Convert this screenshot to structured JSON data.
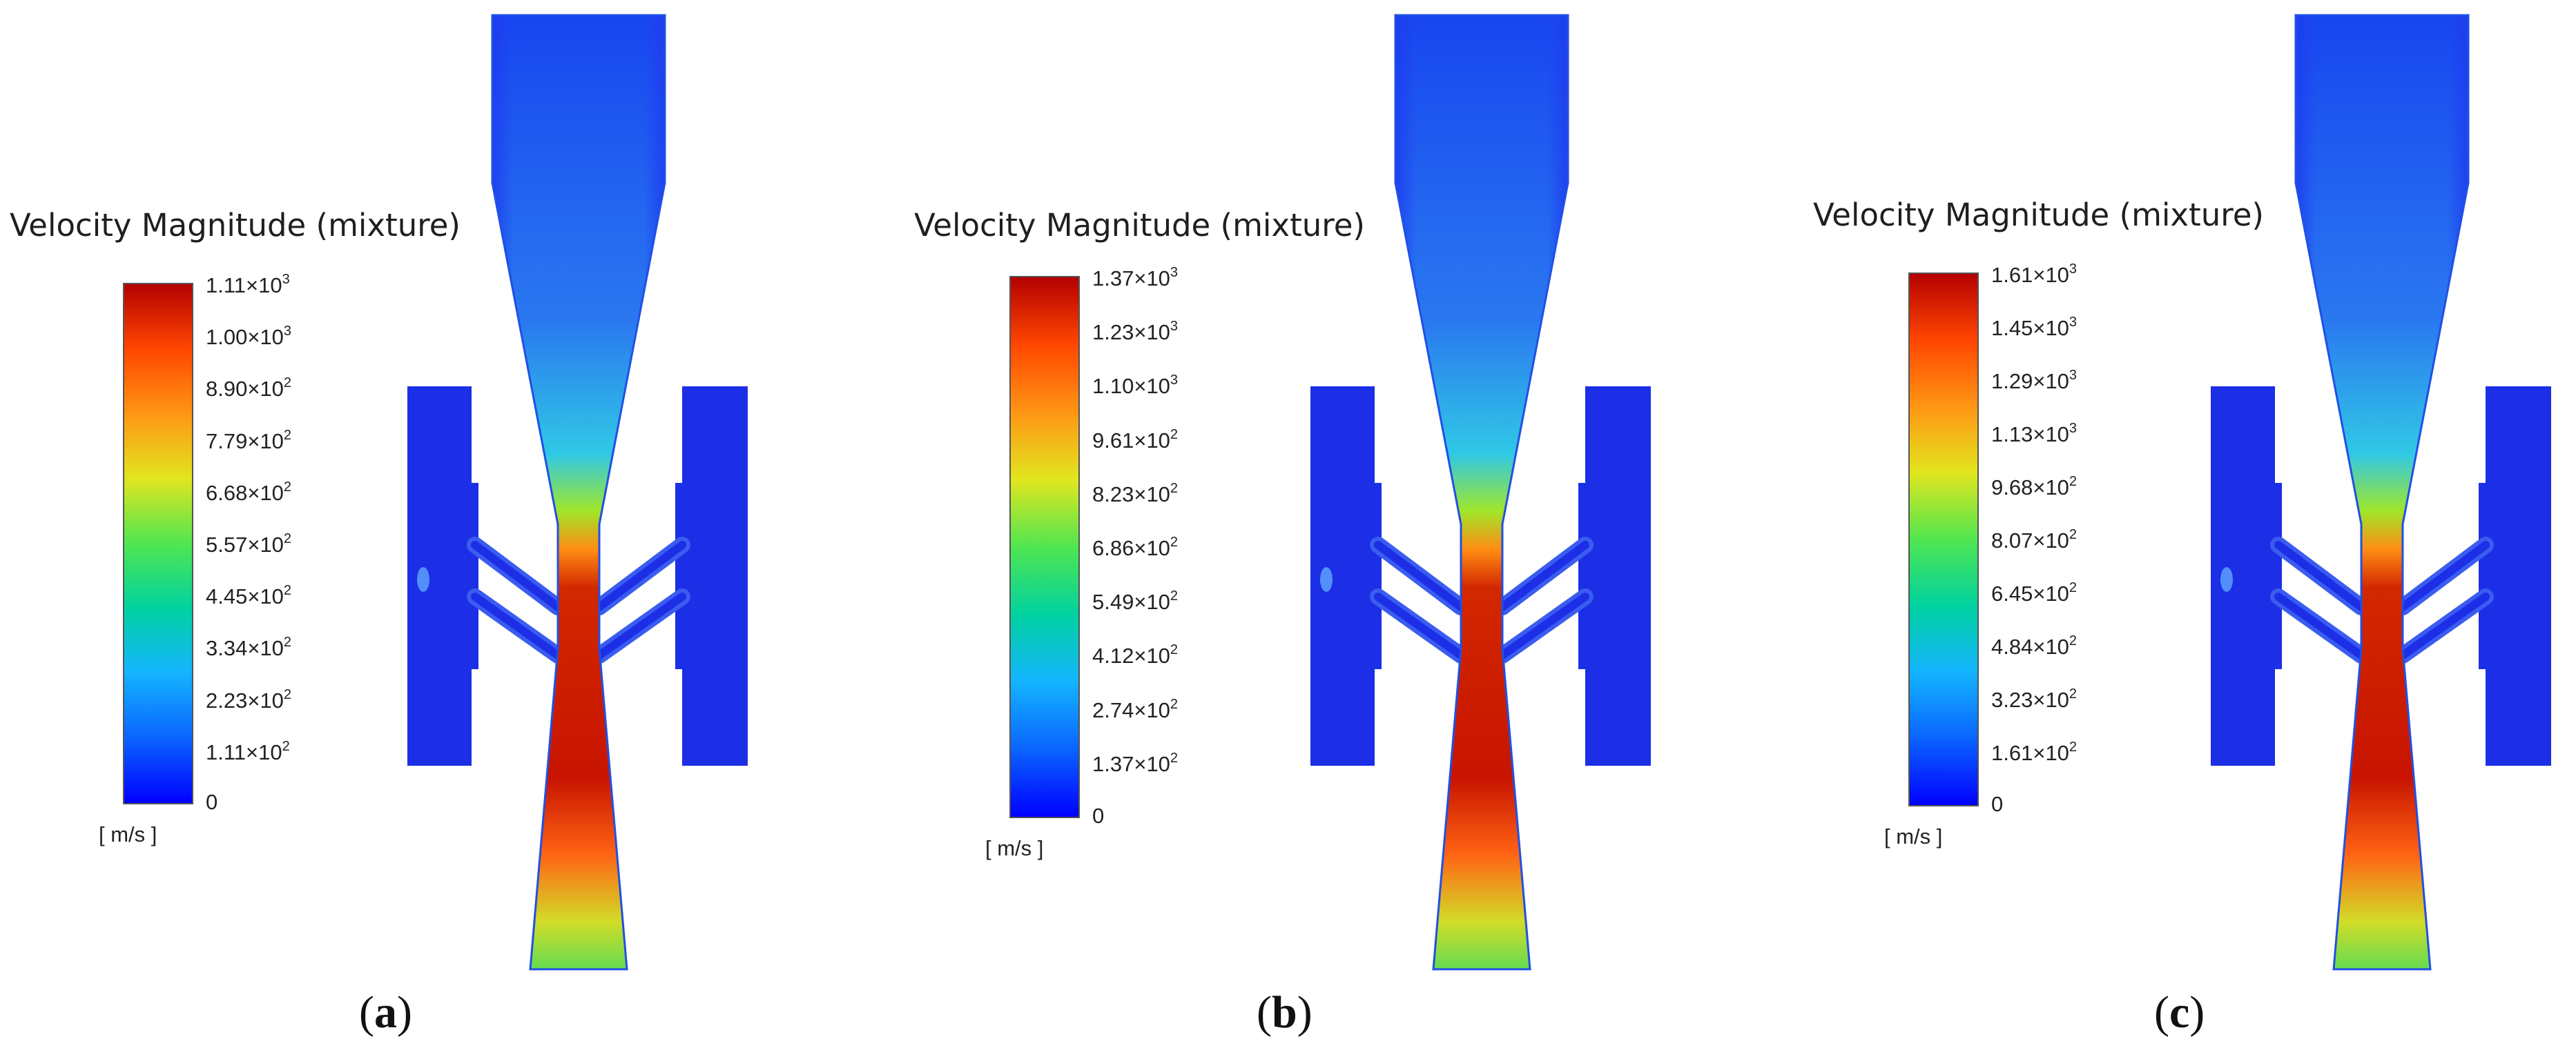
{
  "legend_title": "Velocity Magnitude  (mixture)",
  "unit_label": "[ m/s ]",
  "colormap": [
    "#0000ff",
    "#0a64ff",
    "#14b4ff",
    "#00d2a0",
    "#50e650",
    "#e1e61e",
    "#ff9614",
    "#ff4600",
    "#b40000"
  ],
  "panels": [
    {
      "caption_letter": "a",
      "ticks": [
        {
          "m": "1.11",
          "e": "3"
        },
        {
          "m": "1.00",
          "e": "3"
        },
        {
          "m": "8.90",
          "e": "2"
        },
        {
          "m": "7.79",
          "e": "2"
        },
        {
          "m": "6.68",
          "e": "2"
        },
        {
          "m": "5.57",
          "e": "2"
        },
        {
          "m": "4.45",
          "e": "2"
        },
        {
          "m": "3.34",
          "e": "2"
        },
        {
          "m": "2.23",
          "e": "2"
        },
        {
          "m": "1.11",
          "e": "2"
        },
        {
          "m": "0",
          "e": ""
        }
      ]
    },
    {
      "caption_letter": "b",
      "ticks": [
        {
          "m": "1.37",
          "e": "3"
        },
        {
          "m": "1.23",
          "e": "3"
        },
        {
          "m": "1.10",
          "e": "3"
        },
        {
          "m": "9.61",
          "e": "2"
        },
        {
          "m": "8.23",
          "e": "2"
        },
        {
          "m": "6.86",
          "e": "2"
        },
        {
          "m": "5.49",
          "e": "2"
        },
        {
          "m": "4.12",
          "e": "2"
        },
        {
          "m": "2.74",
          "e": "2"
        },
        {
          "m": "1.37",
          "e": "2"
        },
        {
          "m": "0",
          "e": ""
        }
      ]
    },
    {
      "caption_letter": "c",
      "ticks": [
        {
          "m": "1.61",
          "e": "3"
        },
        {
          "m": "1.45",
          "e": "3"
        },
        {
          "m": "1.29",
          "e": "3"
        },
        {
          "m": "1.13",
          "e": "3"
        },
        {
          "m": "9.68",
          "e": "2"
        },
        {
          "m": "8.07",
          "e": "2"
        },
        {
          "m": "6.45",
          "e": "2"
        },
        {
          "m": "4.84",
          "e": "2"
        },
        {
          "m": "3.23",
          "e": "2"
        },
        {
          "m": "1.61",
          "e": "2"
        },
        {
          "m": "0",
          "e": ""
        }
      ]
    }
  ]
}
